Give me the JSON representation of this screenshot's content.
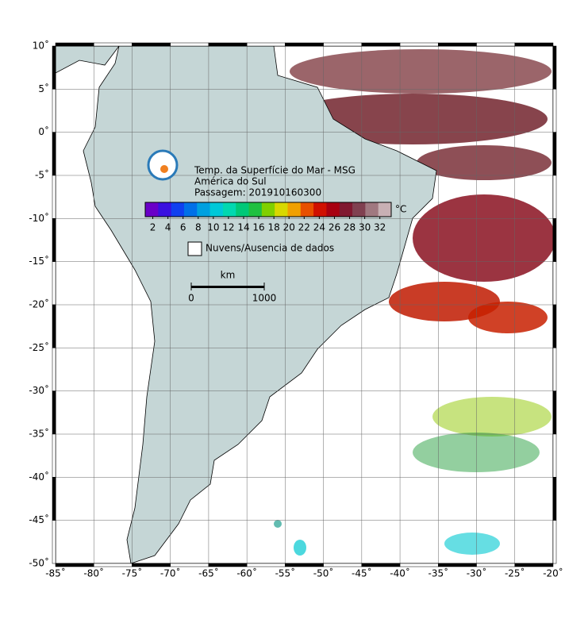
{
  "map": {
    "title": "Temp. da Superfície do Mar - MSG",
    "region": "América do Sul",
    "pass": "Passagem: 201910160300",
    "xlim": [
      -85,
      -20
    ],
    "ylim": [
      -50,
      10
    ],
    "xticks": [
      {
        "value": -85,
        "label": "-85˚"
      },
      {
        "value": -80,
        "label": "-80˚"
      },
      {
        "value": -75,
        "label": "-75˚"
      },
      {
        "value": -70,
        "label": "-70˚"
      },
      {
        "value": -65,
        "label": "-65˚"
      },
      {
        "value": -60,
        "label": "-60˚"
      },
      {
        "value": -55,
        "label": "-55˚"
      },
      {
        "value": -50,
        "label": "-50˚"
      },
      {
        "value": -45,
        "label": "-45˚"
      },
      {
        "value": -40,
        "label": "-40˚"
      },
      {
        "value": -35,
        "label": "-35˚"
      },
      {
        "value": -30,
        "label": "-30˚"
      },
      {
        "value": -25,
        "label": "-25˚"
      },
      {
        "value": -20,
        "label": "-20˚"
      }
    ],
    "yticks": [
      {
        "value": 10,
        "label": "10˚"
      },
      {
        "value": 5,
        "label": "5˚"
      },
      {
        "value": 0,
        "label": "0˚"
      },
      {
        "value": -5,
        "label": "-5˚"
      },
      {
        "value": -10,
        "label": "-10˚"
      },
      {
        "value": -15,
        "label": "-15˚"
      },
      {
        "value": -20,
        "label": "-20˚"
      },
      {
        "value": -25,
        "label": "-25˚"
      },
      {
        "value": -30,
        "label": "-30˚"
      },
      {
        "value": -35,
        "label": "-35˚"
      },
      {
        "value": -40,
        "label": "-40˚"
      },
      {
        "value": -45,
        "label": "-45˚"
      },
      {
        "value": -50,
        "label": "-50˚"
      }
    ],
    "grid": true,
    "colorbar": {
      "unit": "°C",
      "lim": [
        1,
        33.5
      ],
      "ticks": [
        2,
        4,
        6,
        8,
        10,
        12,
        14,
        16,
        18,
        20,
        22,
        24,
        26,
        28,
        30,
        32
      ],
      "colors": [
        "#6a00c8",
        "#3a10e0",
        "#1040f0",
        "#0070e8",
        "#00a0e0",
        "#00c8d8",
        "#00d8b0",
        "#00c878",
        "#20c040",
        "#80d000",
        "#d8d800",
        "#f0a000",
        "#e85000",
        "#d01000",
        "#a80010",
        "#801830",
        "#804050",
        "#a07880",
        "#c8b0b4"
      ]
    },
    "legend": "Nuvens/Ausencia de dados",
    "scale": {
      "unit": "km",
      "ticks": [
        0,
        1000
      ]
    }
  }
}
